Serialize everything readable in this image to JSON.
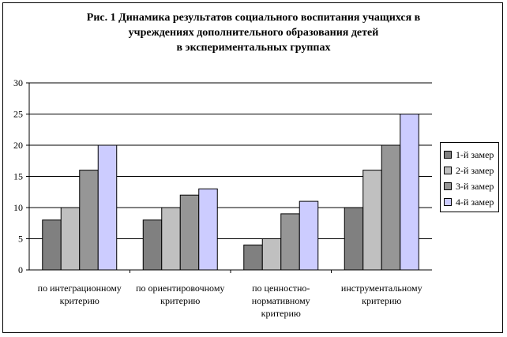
{
  "title_lines": [
    "Рис. 1 Динамика результатов социального воспитания учащихся в",
    "учреждениях дополнительного образования детей",
    "в экспериментальных группах"
  ],
  "colors": {
    "series": [
      "#808080",
      "#c0c0c0",
      "#969696",
      "#ccccff"
    ]
  },
  "chart_data": {
    "type": "bar",
    "title": "Рис. 1 Динамика результатов социального воспитания учащихся в учреждениях дополнительного образования детей в экспериментальных группах",
    "categories": [
      [
        "по интеграционному",
        "критерию"
      ],
      [
        "по ориентировочному",
        "критерию"
      ],
      [
        "по ценностно-",
        "нормативному",
        "критерию"
      ],
      [
        "инструментальному",
        "критерию"
      ]
    ],
    "series": [
      {
        "name": "1-й замер",
        "values": [
          8,
          8,
          4,
          10
        ]
      },
      {
        "name": "2-й замер",
        "values": [
          10,
          10,
          5,
          16
        ]
      },
      {
        "name": "3-й замер",
        "values": [
          16,
          12,
          9,
          20
        ]
      },
      {
        "name": "4-й замер",
        "values": [
          20,
          13,
          11,
          25
        ]
      }
    ],
    "ylim": [
      0,
      30
    ],
    "yticks": [
      "0",
      "5",
      "10",
      "15",
      "20",
      "25",
      "30"
    ],
    "grid": true,
    "legend": "right"
  }
}
